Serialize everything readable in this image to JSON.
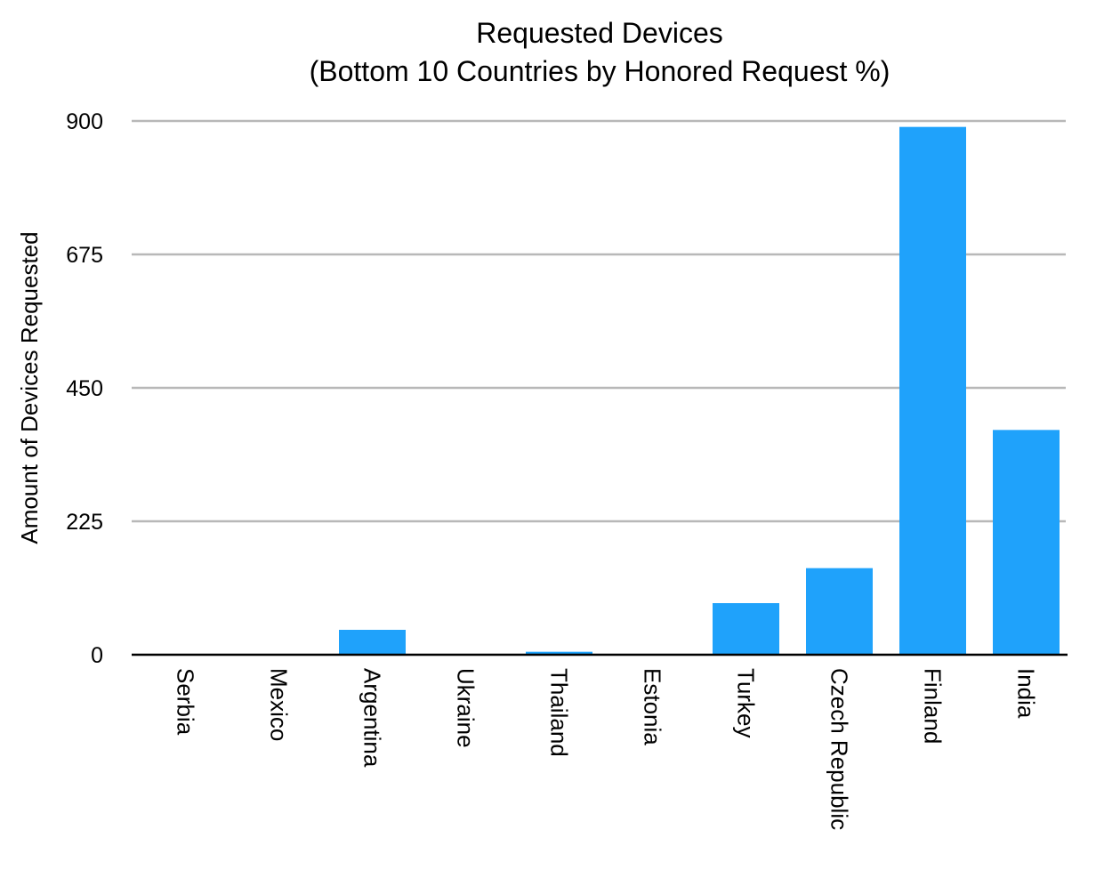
{
  "chart_data": {
    "type": "bar",
    "title": "Requested Devices",
    "subtitle": "(Bottom 10 Countries by Honored Request %)",
    "xlabel": "",
    "ylabel": "Amount of Devices Requested",
    "ylim": [
      0,
      900
    ],
    "yticks": [
      0,
      225,
      450,
      675,
      900
    ],
    "grid": true,
    "categories": [
      "Serbia",
      "Mexico",
      "Argentina",
      "Ukraine",
      "Thailand",
      "Estonia",
      "Turkey",
      "Czech Republic",
      "Finland",
      "India"
    ],
    "values": [
      0,
      0,
      42,
      0,
      5,
      0,
      87,
      146,
      890,
      379
    ],
    "bar_color": "#1fa2fb"
  }
}
